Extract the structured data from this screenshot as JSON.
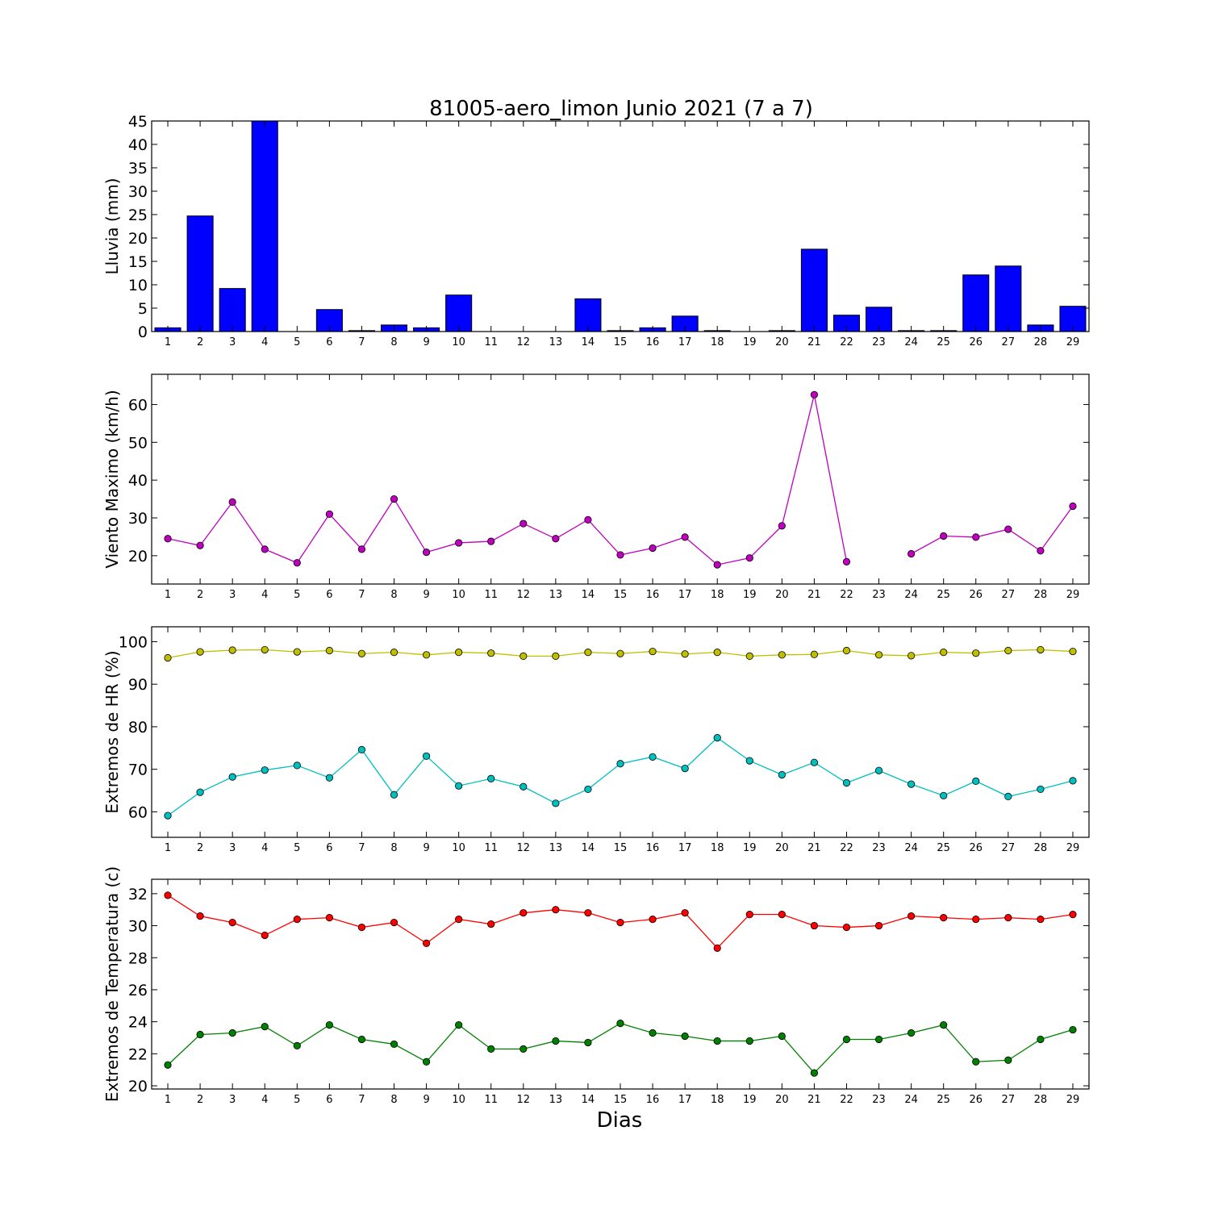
{
  "figure": {
    "title": "81005-aero_limon Junio 2021  (7 a 7)",
    "xlabel": "Dias"
  },
  "chart_data": [
    {
      "type": "bar",
      "title": "81005-aero_limon Junio 2021  (7 a 7)",
      "xlabel": "",
      "ylabel": "Lluvia (mm)",
      "ylim": [
        0,
        45
      ],
      "yticks": [
        0,
        5,
        10,
        15,
        20,
        25,
        30,
        35,
        40,
        45
      ],
      "x": [
        1,
        2,
        3,
        4,
        5,
        6,
        7,
        8,
        9,
        10,
        11,
        12,
        13,
        14,
        15,
        16,
        17,
        18,
        19,
        20,
        21,
        22,
        23,
        24,
        25,
        26,
        27,
        28,
        29
      ],
      "values": [
        0.8,
        24.7,
        9.2,
        45.0,
        0.0,
        4.7,
        0.2,
        1.4,
        0.8,
        7.8,
        0.0,
        0.0,
        0.0,
        7.0,
        0.2,
        0.8,
        3.3,
        0.2,
        0.0,
        0.2,
        17.6,
        3.5,
        5.2,
        0.2,
        0.2,
        12.1,
        14.0,
        1.4,
        5.4
      ],
      "color": "#0000ff",
      "grid": false
    },
    {
      "type": "line",
      "xlabel": "",
      "ylabel": "Viento Maximo (km/h)",
      "ylim": [
        12.5,
        68
      ],
      "yticks": [
        20,
        30,
        40,
        50,
        60
      ],
      "x": [
        1,
        2,
        3,
        4,
        5,
        6,
        7,
        8,
        9,
        10,
        11,
        12,
        13,
        14,
        15,
        16,
        17,
        18,
        19,
        20,
        21,
        22,
        23,
        24,
        25,
        26,
        27,
        28,
        29
      ],
      "series": [
        {
          "color": "#bf00bf",
          "values": [
            24.5,
            22.7,
            34.2,
            21.7,
            18.1,
            31.0,
            21.7,
            35.0,
            20.9,
            23.4,
            23.8,
            28.5,
            24.5,
            29.5,
            20.2,
            22.0,
            24.9,
            17.6,
            19.4,
            27.9,
            62.6,
            18.4,
            null,
            20.5,
            25.2,
            24.9,
            27.0,
            21.3,
            33.1
          ]
        }
      ],
      "grid": false
    },
    {
      "type": "line",
      "xlabel": "",
      "ylabel": "Extremos de HR (%)",
      "ylim": [
        54,
        103.5
      ],
      "yticks": [
        60,
        70,
        80,
        90,
        100
      ],
      "x": [
        1,
        2,
        3,
        4,
        5,
        6,
        7,
        8,
        9,
        10,
        11,
        12,
        13,
        14,
        15,
        16,
        17,
        18,
        19,
        20,
        21,
        22,
        23,
        24,
        25,
        26,
        27,
        28,
        29
      ],
      "series": [
        {
          "color": "#bfbf00",
          "values": [
            96.2,
            97.6,
            98.0,
            98.1,
            97.6,
            97.9,
            97.2,
            97.5,
            96.9,
            97.5,
            97.3,
            96.6,
            96.6,
            97.5,
            97.2,
            97.7,
            97.1,
            97.5,
            96.6,
            96.9,
            97.0,
            97.9,
            96.9,
            96.7,
            97.5,
            97.3,
            97.9,
            98.1,
            97.7
          ]
        },
        {
          "color": "#00bfbf",
          "values": [
            59.1,
            64.6,
            68.2,
            69.8,
            70.9,
            68.0,
            74.6,
            64.0,
            73.1,
            66.1,
            67.8,
            65.9,
            62.0,
            65.3,
            71.3,
            72.9,
            70.2,
            77.4,
            72.0,
            68.7,
            71.6,
            66.8,
            69.7,
            66.5,
            63.8,
            67.2,
            63.6,
            65.3,
            67.3
          ]
        }
      ],
      "grid": false
    },
    {
      "type": "line",
      "xlabel": "Dias",
      "ylabel": "Extremos de Temperatura (c)",
      "ylim": [
        19.8,
        32.9
      ],
      "yticks": [
        20,
        22,
        24,
        26,
        28,
        30,
        32
      ],
      "x": [
        1,
        2,
        3,
        4,
        5,
        6,
        7,
        8,
        9,
        10,
        11,
        12,
        13,
        14,
        15,
        16,
        17,
        18,
        19,
        20,
        21,
        22,
        23,
        24,
        25,
        26,
        27,
        28,
        29
      ],
      "series": [
        {
          "color": "#ff0000",
          "values": [
            31.9,
            30.6,
            30.2,
            29.4,
            30.4,
            30.5,
            29.9,
            30.2,
            28.9,
            30.4,
            30.1,
            30.8,
            31.0,
            30.8,
            30.2,
            30.4,
            30.8,
            28.6,
            30.7,
            30.7,
            30.0,
            29.9,
            30.0,
            30.6,
            30.5,
            30.4,
            30.5,
            30.4,
            30.7
          ]
        },
        {
          "color": "#008000",
          "values": [
            21.3,
            23.2,
            23.3,
            23.7,
            22.5,
            23.8,
            22.9,
            22.6,
            21.5,
            23.8,
            22.3,
            22.3,
            22.8,
            22.7,
            23.9,
            23.3,
            23.1,
            22.8,
            22.8,
            23.1,
            20.8,
            22.9,
            22.9,
            23.3,
            23.8,
            21.5,
            21.6,
            22.9,
            23.5
          ]
        }
      ],
      "grid": false
    }
  ]
}
